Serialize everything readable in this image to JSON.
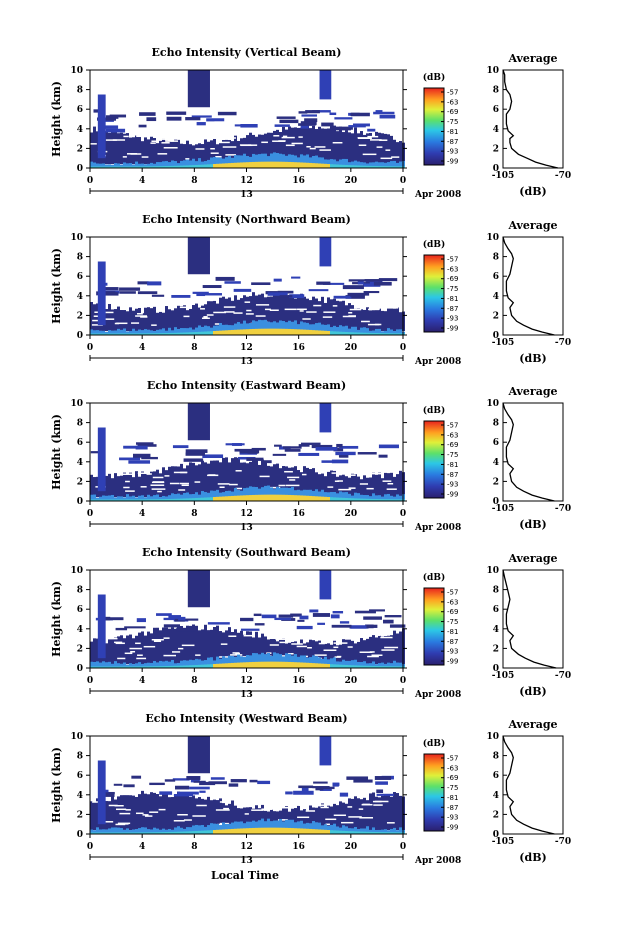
{
  "figure": {
    "date_label": "Apr 2008",
    "bottom_xlabel": "Local Time"
  },
  "chart_data": [
    {
      "type": "heatmap",
      "title": "Echo Intensity (Vertical Beam)",
      "ylabel": "Height (km)",
      "x_ticks": [
        "0",
        "4",
        "8",
        "12",
        "16",
        "20",
        "0"
      ],
      "y_ticks": [
        "0",
        "2",
        "4",
        "6",
        "8",
        "10"
      ],
      "xlim": [
        0,
        24
      ],
      "ylim": [
        0,
        10
      ],
      "day_label": "13",
      "colorbar": {
        "label": "(dB)",
        "ticks": [
          "-57",
          "-63",
          "-69",
          "-75",
          "-81",
          "-87",
          "-93",
          "-99"
        ]
      },
      "average": {
        "title": "Average",
        "xlabel": "(dB)",
        "xlim": [
          -105,
          -70
        ],
        "x_ticks": [
          "-105",
          "-70"
        ],
        "y_ticks": [
          "0",
          "2",
          "4",
          "6",
          "8",
          "10"
        ],
        "profile": [
          [
            -73,
            0
          ],
          [
            -80,
            0.3
          ],
          [
            -86,
            0.6
          ],
          [
            -91,
            1.0
          ],
          [
            -96,
            1.4
          ],
          [
            -100,
            2.0
          ],
          [
            -101,
            2.6
          ],
          [
            -101,
            3.0
          ],
          [
            -99,
            3.3
          ],
          [
            -102,
            3.8
          ],
          [
            -103,
            4.5
          ],
          [
            -103,
            5.5
          ],
          [
            -101,
            6.0
          ],
          [
            -100,
            6.8
          ],
          [
            -101,
            7.5
          ],
          [
            -103,
            8.0
          ],
          [
            -104,
            8.8
          ],
          [
            -104,
            9.5
          ],
          [
            -105,
            10
          ]
        ]
      }
    },
    {
      "type": "heatmap",
      "title": "Echo Intensity (Northward Beam)",
      "ylabel": "Height (km)",
      "x_ticks": [
        "0",
        "4",
        "8",
        "12",
        "16",
        "20",
        "0"
      ],
      "y_ticks": [
        "0",
        "2",
        "4",
        "6",
        "8",
        "10"
      ],
      "xlim": [
        0,
        24
      ],
      "ylim": [
        0,
        10
      ],
      "day_label": "13",
      "colorbar": {
        "label": "(dB)",
        "ticks": [
          "-57",
          "-63",
          "-69",
          "-75",
          "-81",
          "-87",
          "-93",
          "-99"
        ]
      },
      "average": {
        "title": "Average",
        "xlabel": "(dB)",
        "xlim": [
          -105,
          -70
        ],
        "x_ticks": [
          "-105",
          "-70"
        ],
        "y_ticks": [
          "0",
          "2",
          "4",
          "6",
          "8",
          "10"
        ],
        "profile": [
          [
            -75,
            0
          ],
          [
            -82,
            0.3
          ],
          [
            -88,
            0.6
          ],
          [
            -93,
            1.0
          ],
          [
            -97,
            1.4
          ],
          [
            -100,
            2.0
          ],
          [
            -101,
            2.8
          ],
          [
            -99,
            3.3
          ],
          [
            -102,
            3.8
          ],
          [
            -103,
            4.5
          ],
          [
            -103,
            5.5
          ],
          [
            -101,
            6.2
          ],
          [
            -100,
            7.0
          ],
          [
            -99,
            7.8
          ],
          [
            -100,
            8.3
          ],
          [
            -102,
            8.8
          ],
          [
            -104,
            9.4
          ],
          [
            -105,
            10
          ]
        ]
      }
    },
    {
      "type": "heatmap",
      "title": "Echo Intensity (Eastward Beam)",
      "ylabel": "Height (km)",
      "x_ticks": [
        "0",
        "4",
        "8",
        "12",
        "16",
        "20",
        "0"
      ],
      "y_ticks": [
        "0",
        "2",
        "4",
        "6",
        "8",
        "10"
      ],
      "xlim": [
        0,
        24
      ],
      "ylim": [
        0,
        10
      ],
      "day_label": "13",
      "colorbar": {
        "label": "(dB)",
        "ticks": [
          "-57",
          "-63",
          "-69",
          "-75",
          "-81",
          "-87",
          "-93",
          "-99"
        ]
      },
      "average": {
        "title": "Average",
        "xlabel": "(dB)",
        "xlim": [
          -105,
          -70
        ],
        "x_ticks": [
          "-105",
          "-70"
        ],
        "y_ticks": [
          "0",
          "2",
          "4",
          "6",
          "8",
          "10"
        ],
        "profile": [
          [
            -75,
            0
          ],
          [
            -82,
            0.3
          ],
          [
            -88,
            0.6
          ],
          [
            -93,
            1.0
          ],
          [
            -97,
            1.4
          ],
          [
            -100,
            2.0
          ],
          [
            -101,
            2.8
          ],
          [
            -99,
            3.3
          ],
          [
            -102,
            3.8
          ],
          [
            -103,
            4.5
          ],
          [
            -103,
            5.5
          ],
          [
            -101,
            6.2
          ],
          [
            -100,
            7.0
          ],
          [
            -99,
            7.8
          ],
          [
            -100,
            8.3
          ],
          [
            -102,
            8.8
          ],
          [
            -104,
            9.4
          ],
          [
            -105,
            10
          ]
        ]
      }
    },
    {
      "type": "heatmap",
      "title": "Echo Intensity (Southward Beam)",
      "ylabel": "Height (km)",
      "x_ticks": [
        "0",
        "4",
        "8",
        "12",
        "16",
        "20",
        "0"
      ],
      "y_ticks": [
        "0",
        "2",
        "4",
        "6",
        "8",
        "10"
      ],
      "xlim": [
        0,
        24
      ],
      "ylim": [
        0,
        10
      ],
      "day_label": "13",
      "colorbar": {
        "label": "(dB)",
        "ticks": [
          "-57",
          "-63",
          "-69",
          "-75",
          "-81",
          "-87",
          "-93",
          "-99"
        ]
      },
      "average": {
        "title": "Average",
        "xlabel": "(dB)",
        "xlim": [
          -105,
          -70
        ],
        "x_ticks": [
          "-105",
          "-70"
        ],
        "y_ticks": [
          "0",
          "2",
          "4",
          "6",
          "8",
          "10"
        ],
        "profile": [
          [
            -74,
            0
          ],
          [
            -81,
            0.3
          ],
          [
            -87,
            0.6
          ],
          [
            -92,
            1.0
          ],
          [
            -96,
            1.4
          ],
          [
            -100,
            2.0
          ],
          [
            -101,
            2.8
          ],
          [
            -99,
            3.3
          ],
          [
            -102,
            3.8
          ],
          [
            -103,
            4.5
          ],
          [
            -103,
            5.5
          ],
          [
            -102,
            6.2
          ],
          [
            -101,
            7.0
          ],
          [
            -102,
            7.8
          ],
          [
            -103,
            8.5
          ],
          [
            -104,
            9.2
          ],
          [
            -105,
            10
          ]
        ]
      }
    },
    {
      "type": "heatmap",
      "title": "Echo Intensity (Westward Beam)",
      "ylabel": "Height (km)",
      "x_ticks": [
        "0",
        "4",
        "8",
        "12",
        "16",
        "20",
        "0"
      ],
      "y_ticks": [
        "0",
        "2",
        "4",
        "6",
        "8",
        "10"
      ],
      "xlim": [
        0,
        24
      ],
      "ylim": [
        0,
        10
      ],
      "day_label": "13",
      "colorbar": {
        "label": "(dB)",
        "ticks": [
          "-57",
          "-63",
          "-69",
          "-75",
          "-81",
          "-87",
          "-93",
          "-99"
        ]
      },
      "average": {
        "title": "Average",
        "xlabel": "(dB)",
        "xlim": [
          -105,
          -70
        ],
        "x_ticks": [
          "-105",
          "-70"
        ],
        "y_ticks": [
          "0",
          "2",
          "4",
          "6",
          "8",
          "10"
        ],
        "profile": [
          [
            -75,
            0
          ],
          [
            -82,
            0.3
          ],
          [
            -88,
            0.6
          ],
          [
            -93,
            1.0
          ],
          [
            -97,
            1.4
          ],
          [
            -100,
            2.0
          ],
          [
            -101,
            2.8
          ],
          [
            -99,
            3.3
          ],
          [
            -102,
            3.8
          ],
          [
            -103,
            4.5
          ],
          [
            -103,
            5.5
          ],
          [
            -101,
            6.2
          ],
          [
            -100,
            7.0
          ],
          [
            -99,
            7.8
          ],
          [
            -100,
            8.3
          ],
          [
            -102,
            8.8
          ],
          [
            -104,
            9.4
          ],
          [
            -105,
            10
          ]
        ]
      }
    }
  ]
}
